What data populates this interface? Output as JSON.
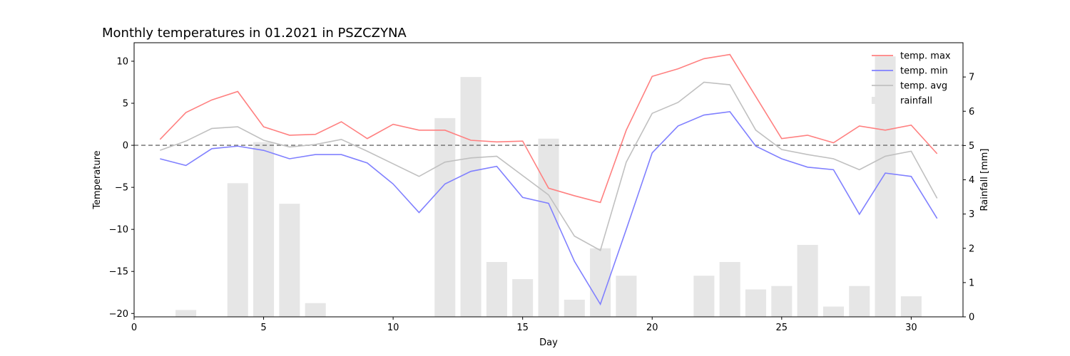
{
  "chart_data": {
    "type": "line",
    "title": "Monthly temperatures in 01.2021 in PSZCZYNA",
    "xlabel": "Day",
    "ylabel": "Temperature",
    "y2label": "Rainfall [mm]",
    "xlim": [
      0,
      32
    ],
    "ylim": [
      -20.4,
      12.2
    ],
    "y2lim": [
      0,
      8.0
    ],
    "x_ticks": [
      0,
      5,
      10,
      15,
      20,
      25,
      30
    ],
    "y_ticks": [
      -20,
      -15,
      -10,
      -5,
      0,
      5,
      10
    ],
    "y2_ticks": [
      0,
      1,
      2,
      3,
      4,
      5,
      6,
      7
    ],
    "x": [
      1,
      2,
      3,
      4,
      5,
      6,
      7,
      8,
      9,
      10,
      11,
      12,
      13,
      14,
      15,
      16,
      17,
      18,
      19,
      20,
      21,
      22,
      23,
      24,
      25,
      26,
      27,
      28,
      29,
      30,
      31
    ],
    "reference_line": {
      "y": 0,
      "style": "dashed",
      "color": "#808080"
    },
    "legend_position": "top-right",
    "series": [
      {
        "name": "temp. max",
        "axis": "left",
        "kind": "line",
        "color": "#ff8080",
        "values": [
          0.7,
          3.9,
          5.4,
          6.4,
          2.2,
          1.2,
          1.3,
          2.8,
          0.8,
          2.5,
          1.8,
          1.8,
          0.6,
          0.4,
          0.5,
          -5.1,
          -6.0,
          -6.8,
          1.8,
          8.2,
          9.1,
          10.3,
          10.8,
          5.8,
          0.8,
          1.2,
          0.3,
          2.3,
          1.8,
          2.4,
          -1.0
        ]
      },
      {
        "name": "temp. min",
        "axis": "left",
        "kind": "line",
        "color": "#8080ff",
        "values": [
          -1.6,
          -2.4,
          -0.4,
          -0.1,
          -0.6,
          -1.6,
          -1.1,
          -1.1,
          -2.1,
          -4.6,
          -8.0,
          -4.6,
          -3.1,
          -2.5,
          -6.2,
          -6.9,
          -13.8,
          -18.9,
          -10.0,
          -0.9,
          2.3,
          3.6,
          4.0,
          -0.1,
          -1.6,
          -2.6,
          -2.9,
          -8.2,
          -3.3,
          -3.7,
          -8.7
        ]
      },
      {
        "name": "temp. avg",
        "axis": "left",
        "kind": "line",
        "color": "#c0c0c0",
        "values": [
          -0.6,
          0.5,
          2.0,
          2.2,
          0.6,
          -0.2,
          0.1,
          0.7,
          -0.7,
          -2.2,
          -3.7,
          -2.0,
          -1.5,
          -1.3,
          -3.6,
          -5.9,
          -10.8,
          -12.5,
          -2.0,
          3.8,
          5.1,
          7.5,
          7.2,
          1.8,
          -0.5,
          -1.1,
          -1.6,
          -2.9,
          -1.3,
          -0.7,
          -6.3
        ]
      },
      {
        "name": "rainfall",
        "axis": "right",
        "kind": "bar",
        "color": "#e6e6e6",
        "values": [
          0,
          0.2,
          0,
          3.9,
          5.1,
          3.3,
          0.4,
          0,
          0,
          0,
          0,
          5.8,
          7.0,
          1.6,
          1.1,
          5.2,
          0.5,
          2.0,
          1.2,
          0,
          0,
          1.2,
          1.6,
          0.8,
          0.9,
          2.1,
          0.3,
          0.9,
          7.6,
          0.6,
          0
        ]
      }
    ]
  }
}
